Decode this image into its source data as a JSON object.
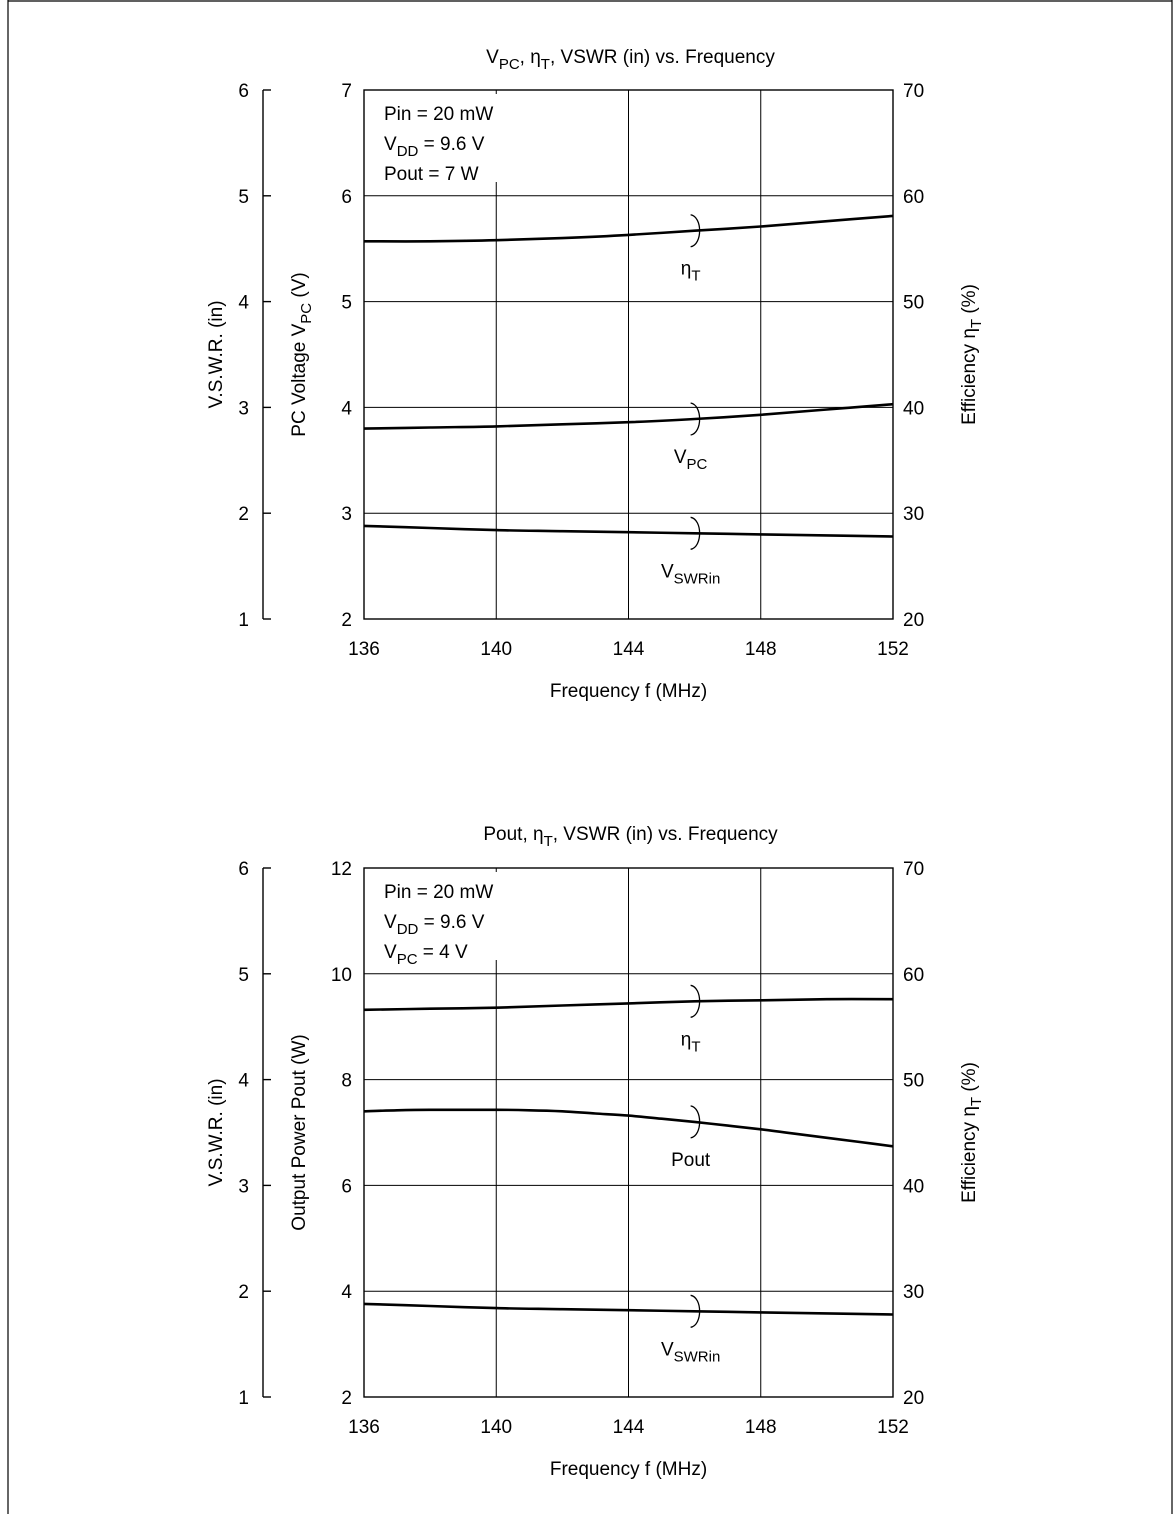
{
  "chart_data": [
    {
      "type": "line",
      "title": {
        "p1": "V",
        "s1": "PC",
        "p2": ", η",
        "s2": "T",
        "p3": ", VSWR (in) vs. Frequency"
      },
      "x": [
        136,
        140,
        144,
        148,
        152
      ],
      "xlim": [
        136,
        152
      ],
      "xticks": [
        "136",
        "140",
        "144",
        "148",
        "152"
      ],
      "xlabel": "Frequency  f  (MHz)",
      "left_axis": {
        "ylim": [
          2,
          7
        ],
        "ticks": [
          "2",
          "3",
          "4",
          "5",
          "6",
          "7"
        ],
        "label": {
          "p1": "PC Voltage  V",
          "s1": "PC",
          "p2": "  (V)"
        }
      },
      "outer_axis": {
        "ylim": [
          1,
          6
        ],
        "ticks": [
          "1",
          "2",
          "3",
          "4",
          "5",
          "6"
        ],
        "label": "V.S.W.R. (in)"
      },
      "right_axis": {
        "ylim": [
          20,
          70
        ],
        "ticks": [
          "20",
          "30",
          "40",
          "50",
          "60",
          "70"
        ],
        "label": {
          "p1": "Efficiency  η",
          "s1": "T",
          "p2": "  (%)"
        }
      },
      "conditions": [
        {
          "main": "Pin = 20 mW",
          "sub": "",
          "rest": ""
        },
        {
          "main": "V",
          "sub": "DD",
          "rest": " = 9.6 V"
        },
        {
          "main": "Pout = 7 W",
          "sub": "",
          "rest": ""
        }
      ],
      "series": [
        {
          "label": {
            "main": "η",
            "sub": "T"
          },
          "axis": "right",
          "x": [
            136,
            138,
            140,
            142,
            144,
            146,
            148,
            150,
            152
          ],
          "y": [
            55.7,
            55.7,
            55.8,
            56.0,
            56.3,
            56.7,
            57.1,
            57.6,
            58.1
          ],
          "label_at": 146
        },
        {
          "label": {
            "main": "V",
            "sub": "PC"
          },
          "axis": "left",
          "x": [
            136,
            138,
            140,
            142,
            144,
            146,
            148,
            150,
            152
          ],
          "y": [
            3.8,
            3.81,
            3.82,
            3.84,
            3.86,
            3.89,
            3.93,
            3.98,
            4.03
          ],
          "label_at": 146
        },
        {
          "label": {
            "main": "V",
            "sub": "SWRin"
          },
          "axis": "outer",
          "x": [
            136,
            138,
            140,
            142,
            144,
            146,
            148,
            150,
            152
          ],
          "y": [
            1.88,
            1.86,
            1.84,
            1.83,
            1.82,
            1.81,
            1.8,
            1.79,
            1.78
          ],
          "label_at": 146
        }
      ]
    },
    {
      "type": "line",
      "title": {
        "p1": "Pout, η",
        "s1": "T",
        "p2": ", VSWR (in) vs. Frequency",
        "s2": "",
        "p3": ""
      },
      "x": [
        136,
        140,
        144,
        148,
        152
      ],
      "xlim": [
        136,
        152
      ],
      "xticks": [
        "136",
        "140",
        "144",
        "148",
        "152"
      ],
      "xlabel": "Frequency  f  (MHz)",
      "left_axis": {
        "ylim": [
          2,
          12
        ],
        "ticks": [
          "2",
          "4",
          "6",
          "8",
          "10",
          "12"
        ],
        "label": {
          "p1": "Output Power  Pout  (W)",
          "s1": "",
          "p2": ""
        }
      },
      "outer_axis": {
        "ylim": [
          1,
          6
        ],
        "ticks": [
          "1",
          "2",
          "3",
          "4",
          "5",
          "6"
        ],
        "label": "V.S.W.R. (in)"
      },
      "right_axis": {
        "ylim": [
          20,
          70
        ],
        "ticks": [
          "20",
          "30",
          "40",
          "50",
          "60",
          "70"
        ],
        "label": {
          "p1": "Efficiency  η",
          "s1": "T",
          "p2": "  (%)"
        }
      },
      "conditions": [
        {
          "main": "Pin = 20 mW",
          "sub": "",
          "rest": ""
        },
        {
          "main": "V",
          "sub": "DD",
          "rest": " = 9.6 V"
        },
        {
          "main": "V",
          "sub": "PC",
          "rest": " = 4 V"
        }
      ],
      "series": [
        {
          "label": {
            "main": "η",
            "sub": "T"
          },
          "axis": "right",
          "x": [
            136,
            138,
            140,
            142,
            144,
            146,
            148,
            150,
            152
          ],
          "y": [
            56.6,
            56.7,
            56.8,
            57.0,
            57.2,
            57.4,
            57.5,
            57.6,
            57.6
          ],
          "label_at": 146
        },
        {
          "label": {
            "main": "Pout",
            "sub": ""
          },
          "axis": "left",
          "x": [
            136,
            137,
            138,
            139,
            140,
            141,
            142,
            143,
            144,
            145,
            146,
            147,
            148,
            149,
            150,
            151,
            152
          ],
          "y": [
            7.4,
            7.42,
            7.43,
            7.43,
            7.43,
            7.42,
            7.4,
            7.36,
            7.32,
            7.26,
            7.2,
            7.13,
            7.06,
            6.98,
            6.9,
            6.82,
            6.74
          ],
          "label_at": 146
        },
        {
          "label": {
            "main": "V",
            "sub": "SWRin"
          },
          "axis": "outer",
          "x": [
            136,
            138,
            140,
            142,
            144,
            146,
            148,
            150,
            152
          ],
          "y": [
            1.88,
            1.86,
            1.84,
            1.83,
            1.82,
            1.81,
            1.8,
            1.79,
            1.78
          ],
          "label_at": 146
        }
      ]
    }
  ]
}
